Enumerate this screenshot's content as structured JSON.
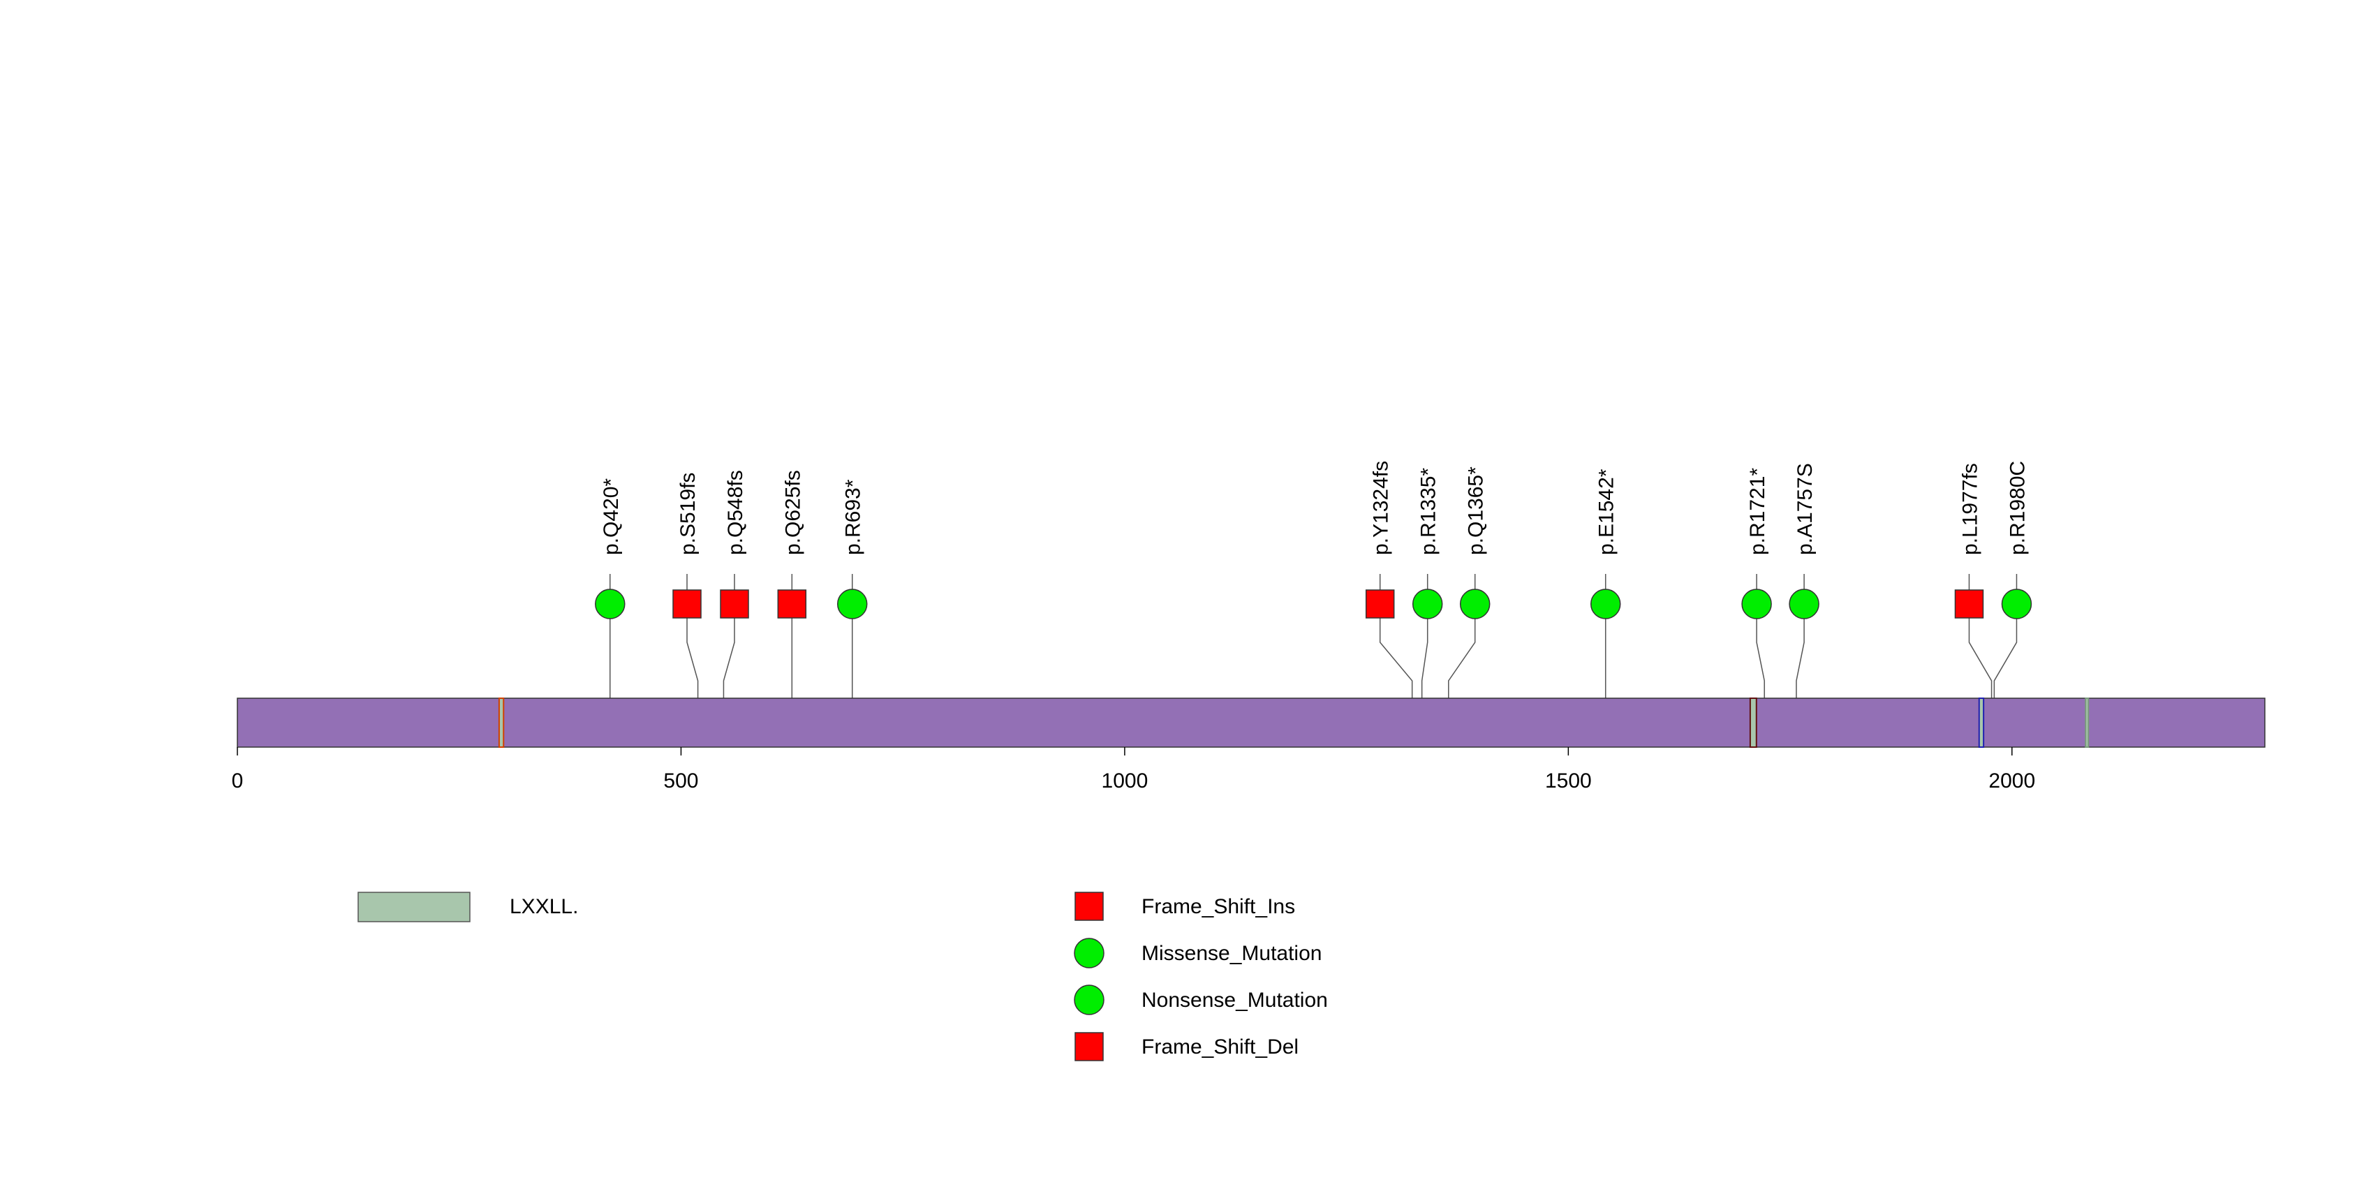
{
  "chart_data": {
    "type": "lollipop",
    "axis": {
      "min": 0,
      "max": 2285,
      "ticks": [
        0,
        500,
        1000,
        1500,
        2000
      ]
    },
    "protein": {
      "color": "#9370b5",
      "length": 2285
    },
    "domains": [
      {
        "name": "LXXLL.",
        "start": 295,
        "end": 300,
        "color": "#a8c6ac"
      },
      {
        "name": "LXXLL.",
        "start": 1705,
        "end": 1712,
        "color": "#a8c6ac"
      },
      {
        "name": "LXXLL.",
        "start": 1963,
        "end": 1968,
        "color": "#a8c6ac"
      },
      {
        "name": "LXXLL.",
        "start": 2083,
        "end": 2086,
        "color": "#a8c6ac"
      }
    ],
    "mutations": [
      {
        "label": "p.Q420*",
        "pos": 420,
        "type": "Nonsense_Mutation"
      },
      {
        "label": "p.S519fs",
        "pos": 519,
        "type": "Frame_Shift_Ins"
      },
      {
        "label": "p.Q548fs",
        "pos": 548,
        "type": "Frame_Shift_Ins"
      },
      {
        "label": "p.Q625fs",
        "pos": 625,
        "type": "Frame_Shift_Del"
      },
      {
        "label": "p.R693*",
        "pos": 693,
        "type": "Nonsense_Mutation"
      },
      {
        "label": "p.Y1324fs",
        "pos": 1324,
        "type": "Frame_Shift_Del"
      },
      {
        "label": "p.R1335*",
        "pos": 1335,
        "type": "Nonsense_Mutation"
      },
      {
        "label": "p.Q1365*",
        "pos": 1365,
        "type": "Nonsense_Mutation"
      },
      {
        "label": "p.E1542*",
        "pos": 1542,
        "type": "Nonsense_Mutation"
      },
      {
        "label": "p.R1721*",
        "pos": 1721,
        "type": "Nonsense_Mutation"
      },
      {
        "label": "p.A1757S",
        "pos": 1757,
        "type": "Missense_Mutation"
      },
      {
        "label": "p.L1977fs",
        "pos": 1977,
        "type": "Frame_Shift_Del"
      },
      {
        "label": "p.R1980C",
        "pos": 1980,
        "type": "Missense_Mutation"
      }
    ],
    "legend": {
      "domain": {
        "label": "LXXLL.",
        "color": "#a8c6ac"
      },
      "mutation_types": [
        {
          "label": "Frame_Shift_Ins",
          "shape": "square",
          "color": "#ff0000"
        },
        {
          "label": "Missense_Mutation",
          "shape": "circle",
          "color": "#00ee00"
        },
        {
          "label": "Nonsense_Mutation",
          "shape": "circle",
          "color": "#00ee00"
        },
        {
          "label": "Frame_Shift_Del",
          "shape": "square",
          "color": "#ff0000"
        }
      ]
    }
  }
}
